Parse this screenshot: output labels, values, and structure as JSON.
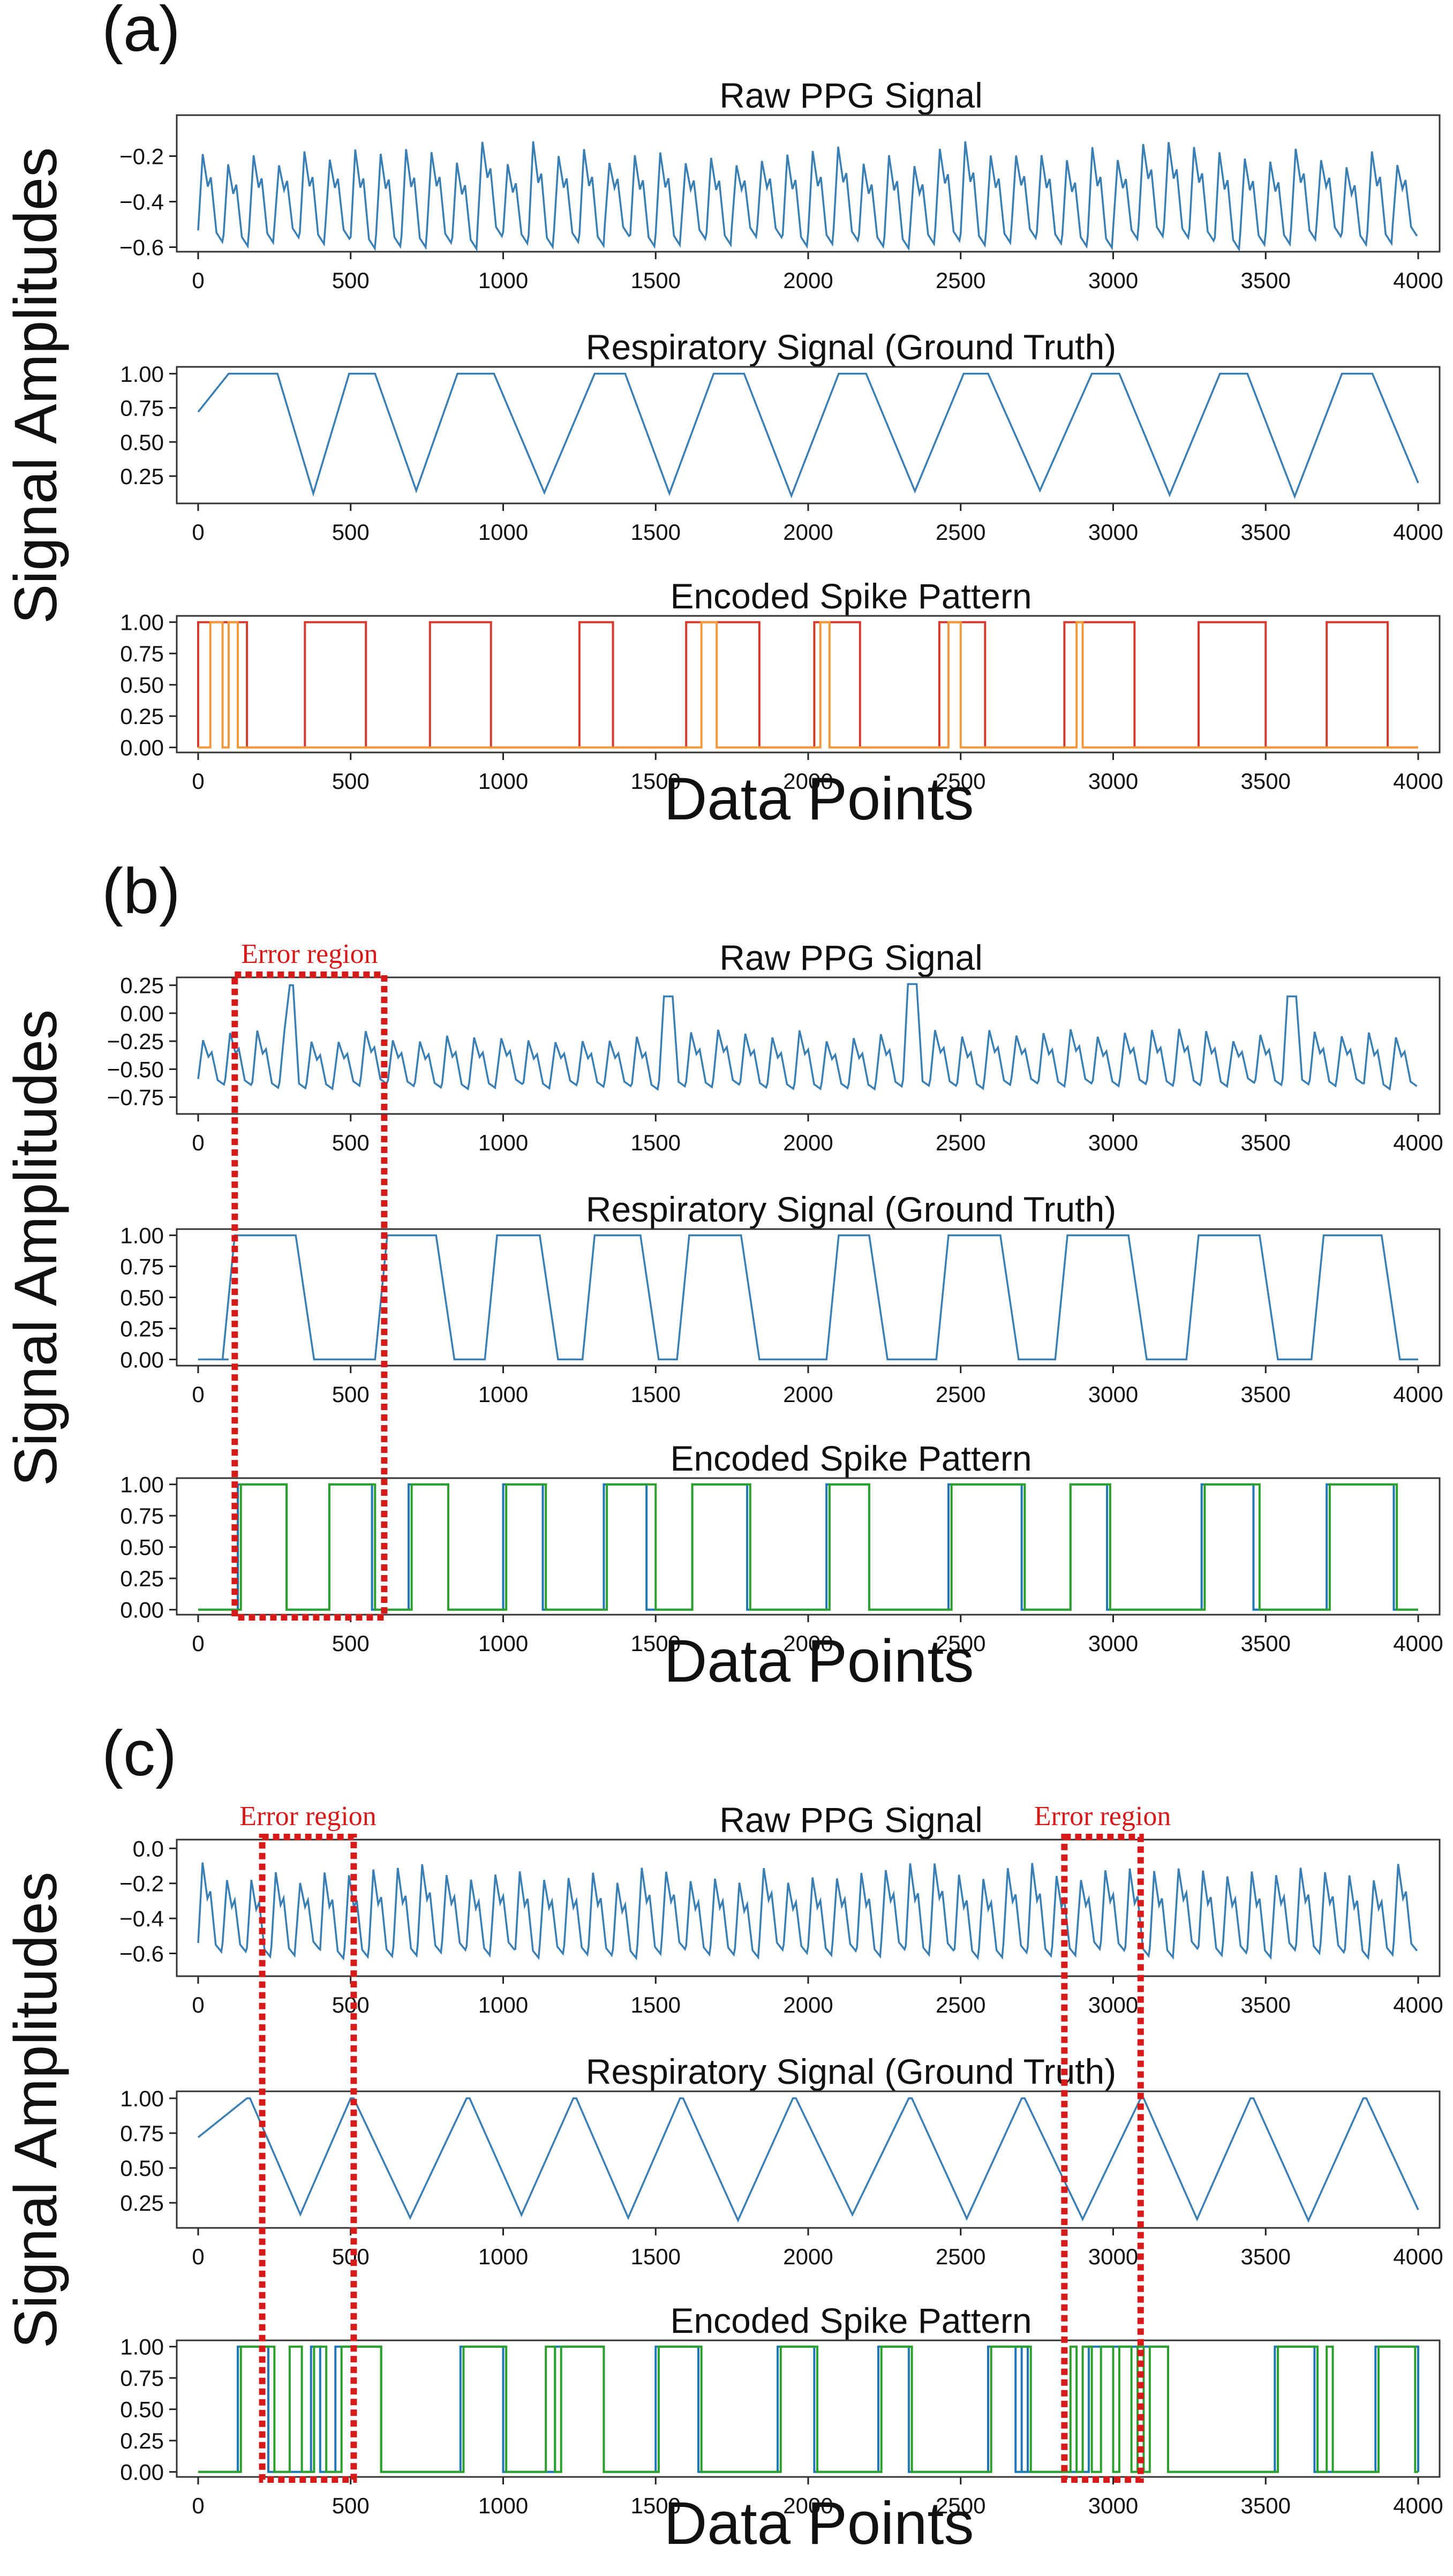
{
  "figure": {
    "x_label": "Data Points",
    "y_label": "Signal Amplitudes",
    "error_label": "Error region"
  },
  "colors": {
    "ppg": "#3a7fb4",
    "resp": "#3a7fb4",
    "spike_red": "#d63a2c",
    "spike_orange": "#f29a3a",
    "spike_green": "#2ca02c",
    "spike_blue": "#1f77b4",
    "error_box": "#d61a1a"
  },
  "chart_data": [
    {
      "id": "a",
      "panel_label": "(a)",
      "subplots": [
        {
          "type": "line",
          "title": "Raw PPG Signal",
          "signal": "ppg",
          "beats": 48,
          "xlim": [
            0,
            4000
          ],
          "ylim": [
            -0.62,
            -0.02
          ],
          "x_ticks": [
            0,
            500,
            1000,
            1500,
            2000,
            2500,
            3000,
            3500,
            4000
          ],
          "y_ticks": [
            -0.6,
            -0.4,
            -0.2
          ],
          "y_tick_labels": [
            "−0.6",
            "−0.4",
            "−0.2"
          ],
          "peak": -0.19,
          "trough": -0.58
        },
        {
          "type": "line",
          "title": "Respiratory Signal (Ground Truth)",
          "signal": "resp",
          "xlim": [
            0,
            4000
          ],
          "ylim": [
            0.05,
            1.05
          ],
          "x_ticks": [
            0,
            500,
            1000,
            1500,
            2000,
            2500,
            3000,
            3500,
            4000
          ],
          "y_ticks": [
            0.25,
            0.5,
            0.75,
            1.0
          ],
          "y_tick_labels": [
            "0.25",
            "0.50",
            "0.75",
            "1.00"
          ],
          "low": 0.1,
          "peaks": [
            [
              100,
              260
            ],
            [
              495,
              580
            ],
            [
              850,
              970
            ],
            [
              1300,
              1400
            ],
            [
              1690,
              1790
            ],
            [
              2100,
              2190
            ],
            [
              2510,
              2590
            ],
            [
              2930,
              3020
            ],
            [
              3350,
              3440
            ],
            [
              3750,
              3850
            ]
          ]
        },
        {
          "type": "step",
          "title": "Encoded Spike Pattern",
          "signal": "spike",
          "xlim": [
            0,
            4000
          ],
          "ylim": [
            -0.04,
            1.05
          ],
          "x_ticks": [
            0,
            500,
            1000,
            1500,
            2000,
            2500,
            3000,
            3500,
            4000
          ],
          "y_ticks": [
            0,
            0.25,
            0.5,
            0.75,
            1.0
          ],
          "y_tick_labels": [
            "0.00",
            "0.25",
            "0.50",
            "0.75",
            "1.00"
          ],
          "series": [
            {
              "color_key": "spike_red",
              "intervals": [
                [
                  0,
                  160
                ],
                [
                  350,
                  550
                ],
                [
                  760,
                  960
                ],
                [
                  1250,
                  1360
                ],
                [
                  1600,
                  1840
                ],
                [
                  2020,
                  2170
                ],
                [
                  2430,
                  2580
                ],
                [
                  2840,
                  3070
                ],
                [
                  3280,
                  3500
                ],
                [
                  3700,
                  3900
                ]
              ]
            },
            {
              "color_key": "spike_orange",
              "intervals": [
                [
                  40,
                  80
                ],
                [
                  100,
                  130
                ],
                [
                  1650,
                  1700
                ],
                [
                  2040,
                  2070
                ],
                [
                  2460,
                  2500
                ],
                [
                  2880,
                  2900
                ]
              ]
            }
          ]
        }
      ]
    },
    {
      "id": "b",
      "panel_label": "(b)",
      "error_regions": [
        [
          120,
          610
        ]
      ],
      "subplots": [
        {
          "type": "line",
          "title": "Raw PPG Signal",
          "signal": "ppg",
          "beats": 45,
          "xlim": [
            0,
            4000
          ],
          "ylim": [
            -0.9,
            0.32
          ],
          "x_ticks": [
            0,
            500,
            1000,
            1500,
            2000,
            2500,
            3000,
            3500,
            4000
          ],
          "y_ticks": [
            -0.75,
            -0.5,
            -0.25,
            0.0,
            0.25
          ],
          "y_tick_labels": [
            "−0.75",
            "−0.50",
            "−0.25",
            "0.00",
            "0.25"
          ],
          "peak": -0.2,
          "trough": -0.65,
          "spikes": [
            [
              320,
              0.25
            ],
            [
              1550,
              0.15
            ],
            [
              2340,
              0.26
            ],
            [
              3570,
              0.15
            ]
          ]
        },
        {
          "type": "line",
          "title": "Respiratory Signal (Ground Truth)",
          "signal": "resp",
          "xlim": [
            0,
            4000
          ],
          "ylim": [
            -0.05,
            1.05
          ],
          "x_ticks": [
            0,
            500,
            1000,
            1500,
            2000,
            2500,
            3000,
            3500,
            4000
          ],
          "y_ticks": [
            0,
            0.25,
            0.5,
            0.75,
            1.0
          ],
          "y_tick_labels": [
            "0.00",
            "0.25",
            "0.50",
            "0.75",
            "1.00"
          ],
          "low": 0.0,
          "plateaus": [
            [
              120,
              320
            ],
            [
              620,
              780
            ],
            [
              980,
              1120
            ],
            [
              1300,
              1450
            ],
            [
              1610,
              1780
            ],
            [
              2100,
              2200
            ],
            [
              2460,
              2630
            ],
            [
              2850,
              3050
            ],
            [
              3280,
              3480
            ],
            [
              3690,
              3880
            ]
          ]
        },
        {
          "type": "step",
          "title": "Encoded Spike Pattern",
          "signal": "spike",
          "xlim": [
            0,
            4000
          ],
          "ylim": [
            -0.04,
            1.05
          ],
          "x_ticks": [
            0,
            500,
            1000,
            1500,
            2000,
            2500,
            3000,
            3500,
            4000
          ],
          "y_ticks": [
            0,
            0.25,
            0.5,
            0.75,
            1.0
          ],
          "y_tick_labels": [
            "0.00",
            "0.25",
            "0.50",
            "0.75",
            "1.00"
          ],
          "series": [
            {
              "color_key": "spike_blue",
              "intervals": [
                [
                  130,
                  290
                ],
                [
                  430,
                  570
                ],
                [
                  690,
                  820
                ],
                [
                  1000,
                  1130
                ],
                [
                  1330,
                  1470
                ],
                [
                  1620,
                  1800
                ],
                [
                  2060,
                  2200
                ],
                [
                  2460,
                  2700
                ],
                [
                  2860,
                  2980
                ],
                [
                  3290,
                  3460
                ],
                [
                  3700,
                  3920
                ]
              ]
            },
            {
              "color_key": "spike_green",
              "intervals": [
                [
                  140,
                  290
                ],
                [
                  430,
                  580
                ],
                [
                  700,
                  820
                ],
                [
                  1010,
                  1140
                ],
                [
                  1340,
                  1500
                ],
                [
                  1620,
                  1810
                ],
                [
                  2070,
                  2200
                ],
                [
                  2470,
                  2710
                ],
                [
                  2860,
                  2990
                ],
                [
                  3300,
                  3480
                ],
                [
                  3710,
                  3930
                ]
              ]
            }
          ]
        }
      ]
    },
    {
      "id": "c",
      "panel_label": "(c)",
      "error_regions": [
        [
          210,
          510
        ],
        [
          2840,
          3090
        ]
      ],
      "subplots": [
        {
          "type": "line",
          "title": "Raw PPG Signal",
          "signal": "ppg",
          "beats": 50,
          "xlim": [
            0,
            4000
          ],
          "ylim": [
            -0.73,
            0.05
          ],
          "x_ticks": [
            0,
            500,
            1000,
            1500,
            2000,
            2500,
            3000,
            3500,
            4000
          ],
          "y_ticks": [
            -0.6,
            -0.4,
            -0.2,
            0.0
          ],
          "y_tick_labels": [
            "−0.6",
            "−0.4",
            "−0.2",
            "0.0"
          ],
          "peak": -0.14,
          "trough": -0.6
        },
        {
          "type": "line",
          "title": "Respiratory Signal (Ground Truth)",
          "signal": "resp",
          "xlim": [
            0,
            4000
          ],
          "ylim": [
            0.07,
            1.05
          ],
          "x_ticks": [
            0,
            500,
            1000,
            1500,
            2000,
            2500,
            3000,
            3500,
            4000
          ],
          "y_ticks": [
            0.25,
            0.5,
            0.75,
            1.0
          ],
          "y_tick_labels": [
            "0.25",
            "0.50",
            "0.75",
            "1.00"
          ],
          "low": 0.12,
          "peaks": [
            [
              160,
              170
            ],
            [
              500,
              510
            ],
            [
              880,
              890
            ],
            [
              1230,
              1240
            ],
            [
              1580,
              1590
            ],
            [
              1950,
              1960
            ],
            [
              2330,
              2340
            ],
            [
              2700,
              2710
            ],
            [
              3090,
              3100
            ],
            [
              3450,
              3460
            ],
            [
              3820,
              3830
            ]
          ]
        },
        {
          "type": "step",
          "title": "Encoded Spike Pattern",
          "signal": "spike",
          "xlim": [
            0,
            4000
          ],
          "ylim": [
            -0.04,
            1.05
          ],
          "x_ticks": [
            0,
            500,
            1000,
            1500,
            2000,
            2500,
            3000,
            3500,
            4000
          ],
          "y_ticks": [
            0,
            0.25,
            0.5,
            0.75,
            1.0
          ],
          "y_tick_labels": [
            "0.00",
            "0.25",
            "0.50",
            "0.75",
            "1.00"
          ],
          "series": [
            {
              "color_key": "spike_blue",
              "intervals": [
                [
                  130,
                  230
                ],
                [
                  370,
                  400
                ],
                [
                  450,
                  600
                ],
                [
                  860,
                  1000
                ],
                [
                  1170,
                  1330
                ],
                [
                  1500,
                  1640
                ],
                [
                  1900,
                  2020
                ],
                [
                  2230,
                  2330
                ],
                [
                  2590,
                  2720
                ],
                [
                  2680,
                  2700
                ],
                [
                  2920,
                  3180
                ],
                [
                  3530,
                  3660
                ],
                [
                  3860,
                  4000
                ]
              ]
            },
            {
              "color_key": "spike_green",
              "intervals": [
                [
                  140,
                  250
                ],
                [
                  300,
                  340
                ],
                [
                  380,
                  420
                ],
                [
                  470,
                  600
                ],
                [
                  870,
                  1010
                ],
                [
                  1140,
                  1170
                ],
                [
                  1190,
                  1330
                ],
                [
                  1510,
                  1650
                ],
                [
                  1910,
                  2030
                ],
                [
                  2240,
                  2340
                ],
                [
                  2600,
                  2730
                ],
                [
                  2860,
                  2880
                ],
                [
                  2900,
                  2930
                ],
                [
                  2960,
                  3000
                ],
                [
                  3020,
                  3060
                ],
                [
                  3080,
                  3100
                ],
                [
                  3120,
                  3180
                ],
                [
                  3540,
                  3670
                ],
                [
                  3700,
                  3720
                ],
                [
                  3870,
                  3990
                ]
              ]
            }
          ]
        }
      ]
    }
  ]
}
